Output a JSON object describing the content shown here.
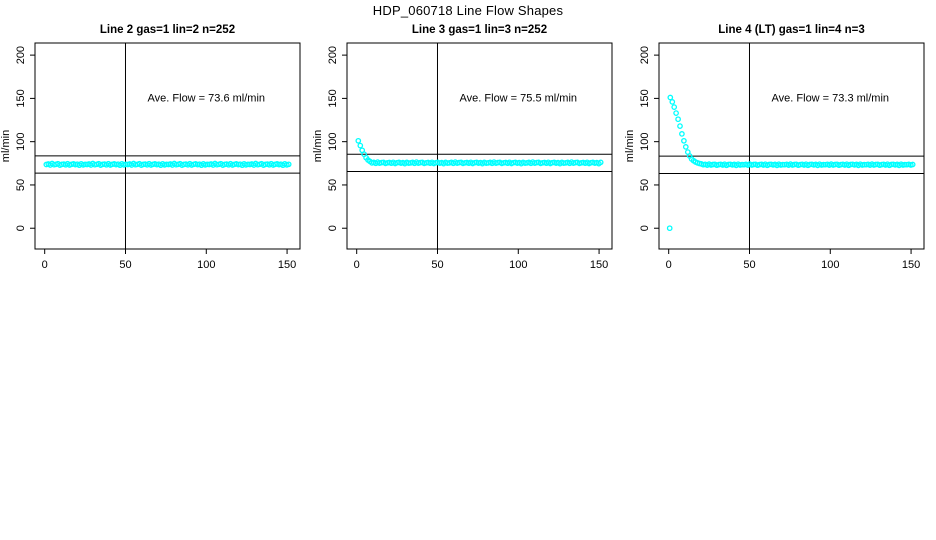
{
  "header": {
    "title": "HDP_060718  Line Flow Shapes"
  },
  "chart_data": [
    {
      "type": "scatter",
      "title": "Line 2 gas=1 lin=2 n=252",
      "ylabel": "ml/min",
      "xlabel": "",
      "ave_flow": 73.6,
      "ave_flow_label": "Ave. Flow =  73.6  ml/min",
      "marker_color": "#00FFFF",
      "axis_color": "#000000",
      "xlim": [
        -6,
        158
      ],
      "ylim": [
        -24,
        214
      ],
      "xticks": [
        0,
        50,
        100,
        150
      ],
      "yticks": [
        0,
        50,
        100,
        150,
        200
      ],
      "grid": false,
      "legend": "none",
      "vline_x": 50,
      "hlines_y": [
        83.6,
        63.6
      ],
      "annotation_xy": [
        100,
        151
      ],
      "points": {
        "x_start": 1,
        "x_step": 1.2,
        "y": [
          73.6,
          74.2,
          73.1,
          74.8,
          73.4,
          73.9,
          74.5,
          72.9,
          73.7,
          74.1,
          73.3,
          74.6,
          73.0,
          73.8,
          74.3,
          73.5,
          74.0,
          72.8,
          74.4,
          73.2,
          73.9,
          73.6,
          74.2,
          73.1,
          74.8,
          73.4,
          73.9,
          74.5,
          72.9,
          73.7,
          74.1,
          73.3,
          74.6,
          73.0,
          73.8,
          74.3,
          73.5,
          74.0,
          72.8,
          74.4,
          73.2,
          73.9,
          73.6,
          74.2,
          73.1,
          74.8,
          73.4,
          73.9,
          74.5,
          72.9,
          73.7,
          74.1,
          73.3,
          74.6,
          73.0,
          73.8,
          74.3,
          73.5,
          74.0,
          72.8,
          74.4,
          73.2,
          73.9,
          73.6,
          74.2,
          73.1,
          74.8,
          73.4,
          73.9,
          74.5,
          72.9,
          73.7,
          74.1,
          73.3,
          74.6,
          73.0,
          73.8,
          74.3,
          73.5,
          74.0,
          72.8,
          74.4,
          73.2,
          73.9,
          73.6,
          74.2,
          73.1,
          74.8,
          73.4,
          73.9,
          74.5,
          72.9,
          73.7,
          74.1,
          73.3,
          74.6,
          73.0,
          73.8,
          74.3,
          73.5,
          74.0,
          72.8,
          74.4,
          73.2,
          73.9,
          73.6,
          74.2,
          73.1,
          74.8,
          73.4,
          73.9,
          74.5,
          72.9,
          73.7,
          74.1,
          73.3,
          74.6,
          73.0,
          73.8,
          74.3,
          73.5,
          74.0,
          72.8,
          74.4,
          73.2,
          73.9
        ]
      }
    },
    {
      "type": "scatter",
      "title": "Line 3 gas=1 lin=3 n=252",
      "ylabel": "ml/min",
      "xlabel": "",
      "ave_flow": 75.5,
      "ave_flow_label": "Ave. Flow =  75.5  ml/min",
      "marker_color": "#00FFFF",
      "axis_color": "#000000",
      "xlim": [
        -6,
        158
      ],
      "ylim": [
        -24,
        214
      ],
      "xticks": [
        0,
        50,
        100,
        150
      ],
      "yticks": [
        0,
        50,
        100,
        150,
        200
      ],
      "grid": false,
      "legend": "none",
      "vline_x": 50,
      "hlines_y": [
        85.5,
        65.5
      ],
      "annotation_xy": [
        100,
        151
      ],
      "points": {
        "x_start": 1,
        "x_step": 1.2,
        "y": [
          101,
          95.5,
          90,
          85.5,
          81.5,
          78.8,
          77.2,
          75.5,
          76.1,
          75.0,
          76.4,
          75.2,
          75.8,
          76.0,
          74.9,
          75.6,
          75.9,
          75.1,
          76.2,
          74.8,
          75.7,
          76.0,
          75.3,
          75.8,
          74.7,
          76.1,
          75.2,
          75.5,
          76.1,
          75.0,
          76.4,
          75.2,
          75.8,
          76.0,
          74.9,
          75.6,
          75.9,
          75.1,
          76.2,
          74.8,
          75.7,
          76.0,
          75.3,
          75.8,
          74.7,
          76.1,
          75.2,
          75.5,
          76.1,
          75.0,
          76.4,
          75.2,
          75.8,
          76.0,
          74.9,
          75.6,
          75.9,
          75.1,
          76.2,
          74.8,
          75.7,
          76.0,
          75.3,
          75.8,
          74.7,
          76.1,
          75.2,
          75.5,
          76.1,
          75.0,
          76.4,
          75.2,
          75.8,
          76.0,
          74.9,
          75.6,
          75.9,
          75.1,
          76.2,
          74.8,
          75.7,
          76.0,
          75.3,
          75.8,
          74.7,
          76.1,
          75.2,
          75.5,
          76.1,
          75.0,
          76.4,
          75.2,
          75.8,
          76.0,
          74.9,
          75.6,
          75.9,
          75.1,
          76.2,
          74.8,
          75.7,
          76.0,
          75.3,
          75.8,
          74.7,
          76.1,
          75.2,
          75.5,
          76.1,
          75.0,
          76.4,
          75.2,
          75.8,
          76.0,
          74.9,
          75.6,
          75.9,
          75.1,
          76.2,
          74.8,
          75.7,
          76.0,
          75.3,
          75.8,
          74.7,
          76.1
        ]
      }
    },
    {
      "type": "scatter",
      "title": "Line 4 (LT) gas=1 lin=4 n=3",
      "ylabel": "ml/min",
      "xlabel": "",
      "ave_flow": 73.3,
      "ave_flow_label": "Ave. Flow =  73.3  ml/min",
      "marker_color": "#00FFFF",
      "axis_color": "#000000",
      "xlim": [
        -6,
        158
      ],
      "ylim": [
        -24,
        214
      ],
      "xticks": [
        0,
        50,
        100,
        150
      ],
      "yticks": [
        0,
        50,
        100,
        150,
        200
      ],
      "grid": false,
      "legend": "none",
      "vline_x": 50,
      "hlines_y": [
        83.3,
        63.3
      ],
      "annotation_xy": [
        100,
        151
      ],
      "extra_points": [
        [
          0.6,
          0
        ]
      ],
      "points": {
        "x_start": 1,
        "x_step": 1.2,
        "y": [
          151,
          146,
          140,
          133,
          126,
          118,
          109,
          101,
          94,
          88,
          83.5,
          80,
          78,
          76.5,
          75.5,
          74.8,
          74.3,
          73.4,
          73.9,
          72.9,
          74.1,
          73.1,
          73.6,
          73.9,
          72.8,
          73.5,
          73.8,
          73.0,
          74.0,
          72.7,
          73.6,
          73.9,
          73.2,
          73.7,
          72.6,
          74.0,
          73.1,
          73.5,
          73.4,
          73.9,
          72.9,
          74.1,
          73.1,
          73.6,
          73.9,
          72.8,
          73.5,
          73.8,
          73.0,
          74.0,
          72.7,
          73.6,
          73.9,
          73.2,
          73.7,
          72.6,
          74.0,
          73.1,
          73.5,
          73.4,
          73.9,
          72.9,
          74.1,
          73.1,
          73.6,
          73.9,
          72.8,
          73.5,
          73.8,
          73.0,
          74.0,
          72.7,
          73.6,
          73.9,
          73.2,
          73.7,
          72.6,
          74.0,
          73.1,
          73.5,
          73.4,
          73.9,
          72.9,
          74.1,
          73.1,
          73.6,
          73.9,
          72.8,
          73.5,
          73.8,
          73.0,
          74.0,
          72.7,
          73.6,
          73.9,
          73.2,
          73.7,
          72.6,
          74.0,
          73.1,
          73.5,
          73.4,
          73.9,
          72.9,
          74.1,
          73.1,
          73.6,
          73.9,
          72.8,
          73.5,
          73.8,
          73.0,
          74.0,
          72.7,
          73.6,
          73.9,
          73.2,
          73.7,
          72.6,
          74.0,
          73.1,
          73.5,
          73.4,
          73.8,
          73.0,
          73.6
        ]
      }
    }
  ]
}
